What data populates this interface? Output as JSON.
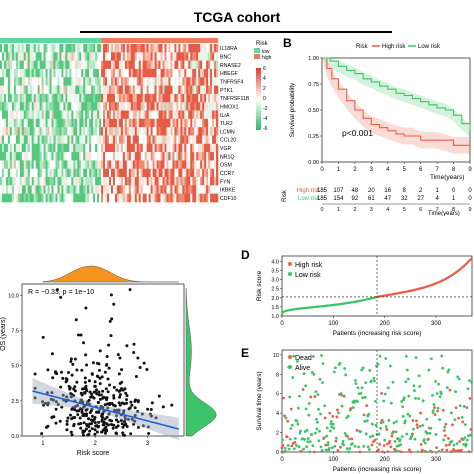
{
  "title": "TCGA cohort",
  "heatmap": {
    "genes": [
      "IL18RA",
      "BNC",
      "RNASE2",
      "HBEGF",
      "TNFRSF4",
      "PTK1",
      "TNFRSF11B",
      "HMOX1",
      "ILrA",
      "TLR2",
      "LCMN",
      "CCL20",
      "VGR",
      "NR1Q",
      "OSM",
      "CCR7",
      "FYN",
      "IKBKE",
      "CDF10"
    ],
    "legend_title": "Risk",
    "legend_items": [
      "low",
      "high"
    ],
    "scale_ticks": [
      "6",
      "4",
      "2",
      "0",
      "-2",
      "-4",
      "-6"
    ],
    "low_color": "#5fd8a0",
    "high_color": "#f07a5f",
    "risk_split_fraction": 0.46
  },
  "panels": {
    "B": "B",
    "D": "D",
    "E": "E"
  },
  "survival": {
    "legend_title": "Risk",
    "legend_items": [
      "High risk",
      "Low risk"
    ],
    "annotation": "p<0.001",
    "xlabel": "Time(years)",
    "ylabel": "Survival probability",
    "xticks": [
      "0",
      "1",
      "2",
      "3",
      "4",
      "5",
      "6",
      "7",
      "8",
      "9"
    ],
    "yticks": [
      "0.00",
      "0.25",
      "0.50",
      "0.75",
      "1.00"
    ],
    "risk_table": {
      "label": "Risk",
      "rows": [
        {
          "name": "High risk",
          "color": "#e8604a",
          "values": [
            "185",
            "107",
            "48",
            "20",
            "16",
            "8",
            "2",
            "1",
            "0",
            "0"
          ]
        },
        {
          "name": "Low risk",
          "color": "#3cc46a",
          "values": [
            "185",
            "154",
            "92",
            "61",
            "47",
            "32",
            "27",
            "4",
            "1",
            "0"
          ]
        }
      ],
      "xlabel": "Time(years)"
    }
  },
  "chart_data": [
    {
      "type": "line",
      "title": "",
      "xlabel": "Time(years)",
      "ylabel": "Survival probability",
      "xlim": [
        0,
        9
      ],
      "ylim": [
        0,
        1
      ],
      "series": [
        {
          "name": "High risk",
          "color": "#e8604a",
          "x": [
            0,
            0.3,
            0.6,
            1,
            1.5,
            2,
            2.5,
            3,
            3.5,
            4,
            4.5,
            5,
            5.5,
            6,
            6.5,
            7,
            8,
            9
          ],
          "y": [
            1,
            0.9,
            0.8,
            0.7,
            0.59,
            0.5,
            0.42,
            0.36,
            0.33,
            0.3,
            0.27,
            0.25,
            0.25,
            0.21,
            0.21,
            0.21,
            0.16,
            0.16
          ]
        },
        {
          "name": "Low risk",
          "color": "#3cc46a",
          "x": [
            0,
            0.5,
            1,
            1.5,
            2,
            2.5,
            3,
            3.5,
            4,
            4.5,
            5,
            5.5,
            6,
            6.5,
            7,
            7.5,
            8,
            8.5,
            9
          ],
          "y": [
            1,
            0.97,
            0.92,
            0.88,
            0.85,
            0.8,
            0.77,
            0.73,
            0.7,
            0.66,
            0.64,
            0.61,
            0.58,
            0.55,
            0.52,
            0.5,
            0.45,
            0.37,
            0.3
          ]
        }
      ]
    },
    {
      "type": "scatter",
      "title": "",
      "xlabel": "Patients (increasing risk score)",
      "ylabel": "Risk score",
      "xlim": [
        0,
        370
      ],
      "ylim": [
        1,
        4.3
      ],
      "yticks": [
        "1.0",
        "1.5",
        "2.0",
        "2.5",
        "3.0",
        "3.5",
        "4.0"
      ],
      "xticks": [
        "0",
        "100",
        "200",
        "300"
      ],
      "cutoff": 185,
      "threshold": 2.05,
      "series": [
        {
          "name": "High risk",
          "color": "#e8604a",
          "summary": "185 points increasing from 2.05 to 4.2"
        },
        {
          "name": "Low risk",
          "color": "#3cc46a",
          "summary": "185 points increasing from 1.1 to 2.05"
        }
      ]
    },
    {
      "type": "scatter",
      "title": "",
      "xlabel": "Patients (increasing risk score)",
      "ylabel": "Survival time (years)",
      "xlim": [
        0,
        370
      ],
      "ylim": [
        0,
        10.5
      ],
      "yticks": [
        "0",
        "2",
        "4",
        "6",
        "8",
        "10"
      ],
      "xticks": [
        "0",
        "100",
        "200",
        "300"
      ],
      "cutoff": 185,
      "series": [
        {
          "name": "Dead",
          "color": "#e8604a"
        },
        {
          "name": "Alive",
          "color": "#3cc46a"
        }
      ]
    },
    {
      "type": "scatter",
      "title": "",
      "xlabel": "Risk score",
      "ylabel": "OS (years)",
      "xlim": [
        0.6,
        3.7
      ],
      "ylim": [
        0,
        10.8
      ],
      "xticks": [
        "1",
        "2",
        "3"
      ],
      "yticks": [
        "0.0",
        "2.5",
        "5.0",
        "7.5",
        "10.0"
      ],
      "annotation": "R = −0.33, p = 1e−10",
      "regression": {
        "x": [
          0.8,
          3.6
        ],
        "y": [
          3.2,
          0.5
        ]
      },
      "marginal_x_color": "#f5941e",
      "marginal_y_color": "#3cc46a"
    }
  ]
}
